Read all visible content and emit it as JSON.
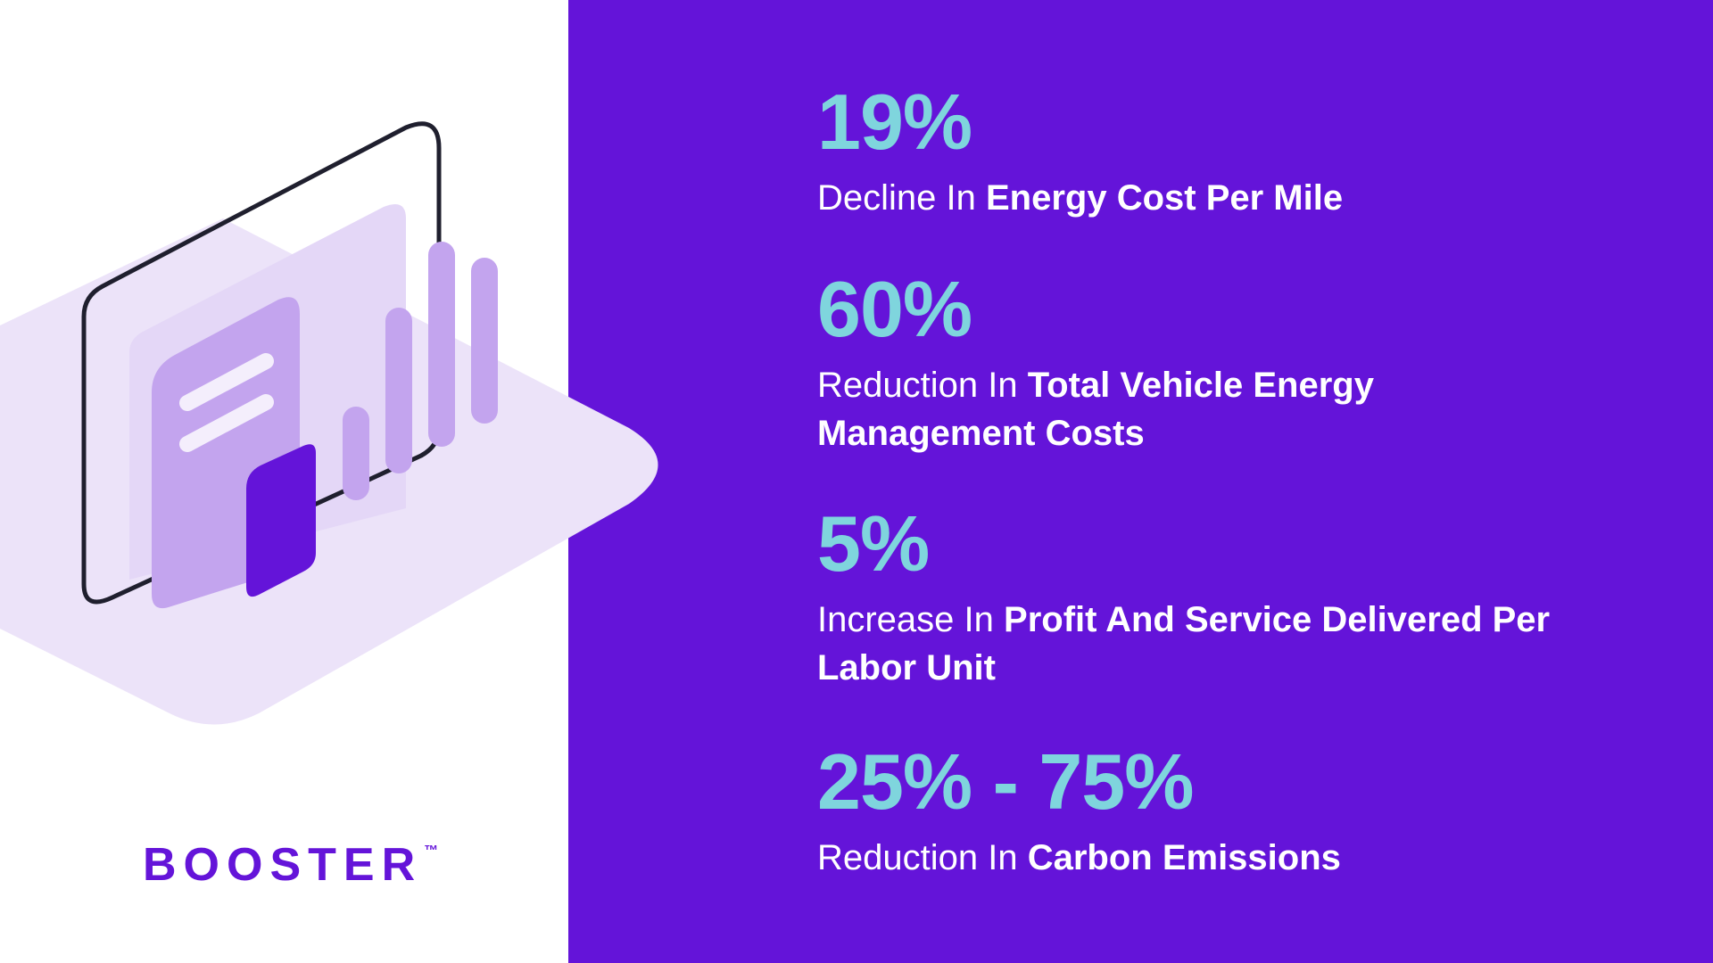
{
  "brand": {
    "name": "BOOSTER",
    "trademark": "™"
  },
  "colors": {
    "primary_purple": "#6414d9",
    "accent_teal": "#7fd5dd",
    "lavender_light": "#ece3f9",
    "lavender_mid": "#c3a4ee",
    "text_white": "#ffffff"
  },
  "stats": [
    {
      "value": "19%",
      "lead": "Decline In ",
      "emphasis": "Energy Cost Per Mile"
    },
    {
      "value": "60%",
      "lead": "Reduction In ",
      "emphasis": "Total Vehicle Energy Management Costs"
    },
    {
      "value": "5%",
      "lead": "Increase In ",
      "emphasis": "Profit And Service Delivered Per Labor Unit"
    },
    {
      "value": "25% - 75%",
      "lead": "Reduction In ",
      "emphasis": "Carbon Emissions"
    }
  ],
  "illustration": {
    "icon": "dashboard-chart-icon"
  }
}
